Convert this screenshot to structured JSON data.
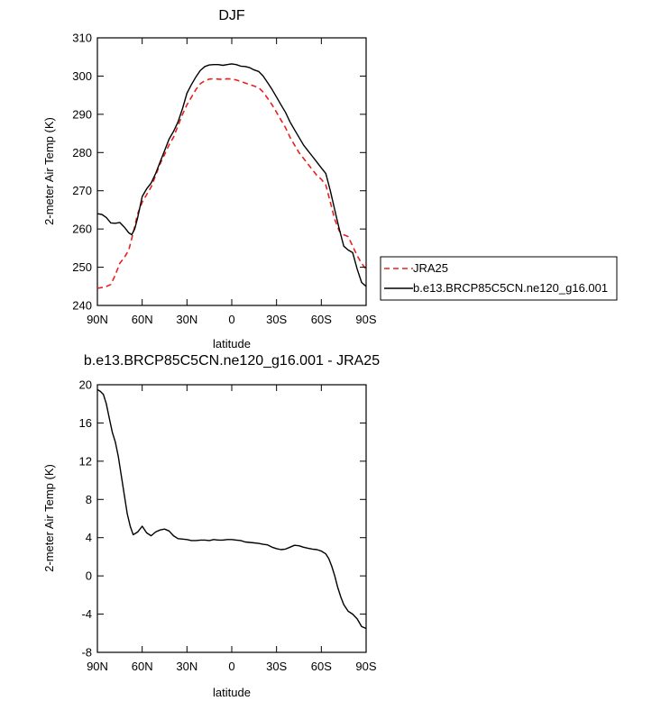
{
  "chart_data": [
    {
      "type": "line",
      "title": "DJF",
      "xlabel": "latitude",
      "ylabel": "2-meter Air Temp (K)",
      "xlim": [
        90,
        -90
      ],
      "ylim": [
        240,
        310
      ],
      "xticks": [
        90,
        60,
        30,
        0,
        -30,
        -60,
        -90
      ],
      "xtick_labels": [
        "90N",
        "60N",
        "30N",
        "0",
        "30S",
        "60S",
        "90S"
      ],
      "yticks": [
        240,
        250,
        260,
        270,
        280,
        290,
        300,
        310
      ],
      "ytick_labels": [
        "240",
        "250",
        "260",
        "270",
        "280",
        "290",
        "300",
        "310"
      ],
      "legend": "right",
      "series": [
        {
          "name": "JRA25",
          "color": "#e8211f",
          "dash": "dashed",
          "x": [
            90,
            85,
            81,
            78,
            75,
            72,
            69,
            66,
            63,
            60,
            57,
            54,
            51,
            48,
            45,
            42,
            39,
            36,
            33,
            30,
            27,
            24,
            21,
            18,
            15,
            12,
            9,
            6,
            3,
            0,
            -3,
            -6,
            -9,
            -12,
            -15,
            -18,
            -21,
            -24,
            -27,
            -30,
            -33,
            -36,
            -39,
            -42,
            -45,
            -48,
            -51,
            -54,
            -57,
            -60,
            -63,
            -66,
            -69,
            -72,
            -75,
            -78,
            -81,
            -84,
            -87,
            -90
          ],
          "y": [
            244.5,
            244.8,
            245.5,
            248,
            251,
            252.5,
            254.5,
            259,
            264,
            267,
            269,
            271,
            274,
            277,
            279.5,
            282,
            284,
            287,
            290,
            292.5,
            294.5,
            296.5,
            298,
            298.8,
            299.2,
            299.3,
            299.2,
            299.1,
            299.3,
            299.2,
            299,
            298.6,
            298.2,
            297.8,
            297.4,
            297,
            295.8,
            294.2,
            292.5,
            290.5,
            288.5,
            286.5,
            284,
            282,
            280,
            278.5,
            277,
            275.5,
            274,
            273,
            271.5,
            267,
            262.5,
            259.5,
            258.5,
            258,
            255.5,
            253,
            251,
            249.5
          ]
        },
        {
          "name": "b.e13.BRCP85C5CN.ne120_g16.001",
          "color": "#000000",
          "dash": "solid",
          "x": [
            90,
            87,
            84,
            81,
            78,
            75,
            72,
            69,
            67,
            65,
            63,
            60,
            57,
            54,
            51,
            48,
            45,
            42,
            39,
            36,
            33,
            30,
            27,
            24,
            21,
            18,
            15,
            12,
            9,
            6,
            3,
            0,
            -3,
            -6,
            -9,
            -12,
            -15,
            -18,
            -21,
            -24,
            -27,
            -30,
            -33,
            -36,
            -39,
            -42,
            -45,
            -48,
            -51,
            -54,
            -57,
            -60,
            -63,
            -66,
            -69,
            -72,
            -75,
            -78,
            -81,
            -84,
            -87,
            -90
          ],
          "y": [
            264,
            263.8,
            263,
            261.6,
            261.5,
            261.7,
            260.5,
            259,
            258.5,
            260,
            263,
            268.5,
            270.5,
            272,
            274.5,
            277.5,
            280.5,
            283.5,
            285.5,
            288,
            291.5,
            295.5,
            297.8,
            299.8,
            301.5,
            302.5,
            302.9,
            303,
            303,
            302.8,
            303,
            303.2,
            303,
            302.6,
            302.5,
            302.2,
            301.6,
            301.2,
            300,
            298.3,
            296.5,
            294.5,
            292.5,
            290.5,
            288,
            286,
            284,
            282,
            280.5,
            279,
            277.5,
            276,
            274.5,
            270,
            265,
            260,
            255.5,
            254.5,
            253.8,
            249.5,
            246,
            245
          ]
        }
      ]
    },
    {
      "type": "line",
      "title": "b.e13.BRCP85C5CN.ne120_g16.001 - JRA25",
      "xlabel": "latitude",
      "ylabel": "2-meter Air Temp (K)",
      "xlim": [
        90,
        -90
      ],
      "ylim": [
        -8,
        20
      ],
      "xticks": [
        90,
        60,
        30,
        0,
        -30,
        -60,
        -90
      ],
      "xtick_labels": [
        "90N",
        "60N",
        "30N",
        "0",
        "30S",
        "60S",
        "90S"
      ],
      "yticks": [
        -8,
        -4,
        0,
        4,
        8,
        12,
        16,
        20
      ],
      "ytick_labels": [
        "-8",
        "-4",
        "0",
        "4",
        "8",
        "12",
        "16",
        "20"
      ],
      "series": [
        {
          "color": "#000000",
          "dash": "solid",
          "x": [
            90,
            88,
            86,
            84,
            82,
            80,
            78,
            76,
            74,
            72,
            70,
            68,
            66,
            63,
            60,
            57,
            54,
            51,
            48,
            45,
            42,
            39,
            36,
            33,
            30,
            27,
            24,
            21,
            18,
            15,
            12,
            9,
            6,
            3,
            0,
            -3,
            -6,
            -9,
            -12,
            -15,
            -18,
            -21,
            -24,
            -27,
            -30,
            -33,
            -36,
            -39,
            -42,
            -45,
            -48,
            -51,
            -54,
            -57,
            -60,
            -63,
            -65,
            -67,
            -69,
            -71,
            -73,
            -75,
            -78,
            -81,
            -84,
            -87,
            -90
          ],
          "y": [
            19.5,
            19.3,
            19,
            18,
            16.5,
            15,
            14,
            12.5,
            10.5,
            8.5,
            6.5,
            5.2,
            4.3,
            4.6,
            5.2,
            4.5,
            4.2,
            4.6,
            4.8,
            4.9,
            4.7,
            4.2,
            3.9,
            3.85,
            3.8,
            3.7,
            3.7,
            3.75,
            3.75,
            3.7,
            3.8,
            3.75,
            3.75,
            3.8,
            3.8,
            3.75,
            3.7,
            3.55,
            3.5,
            3.45,
            3.4,
            3.3,
            3.25,
            3.0,
            2.85,
            2.75,
            2.8,
            3.0,
            3.2,
            3.15,
            3.0,
            2.9,
            2.8,
            2.75,
            2.6,
            2.3,
            1.8,
            1.0,
            0.0,
            -1.2,
            -2.2,
            -3.0,
            -3.7,
            -4.0,
            -4.5,
            -5.3,
            -5.5
          ]
        }
      ]
    }
  ]
}
